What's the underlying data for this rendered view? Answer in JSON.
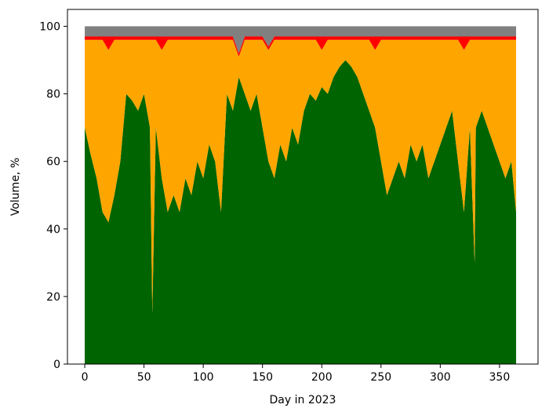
{
  "chart_data": {
    "type": "stacked_area",
    "xlabel": "Day in 2023",
    "ylabel": "Volume, %",
    "x": [
      0,
      5,
      10,
      15,
      20,
      25,
      30,
      35,
      40,
      45,
      50,
      55,
      57,
      60,
      65,
      70,
      75,
      80,
      85,
      90,
      95,
      100,
      105,
      110,
      115,
      120,
      125,
      130,
      135,
      140,
      145,
      150,
      155,
      160,
      165,
      170,
      175,
      180,
      185,
      190,
      195,
      200,
      205,
      210,
      215,
      220,
      225,
      230,
      235,
      240,
      245,
      250,
      255,
      260,
      265,
      270,
      275,
      280,
      285,
      290,
      295,
      300,
      305,
      310,
      315,
      320,
      325,
      329,
      330,
      335,
      340,
      345,
      350,
      355,
      360,
      364
    ],
    "series": [
      {
        "color": "#006400",
        "values": [
          70,
          62,
          55,
          45,
          42,
          50,
          60,
          80,
          78,
          75,
          80,
          70,
          15,
          70,
          55,
          45,
          50,
          45,
          55,
          50,
          60,
          55,
          65,
          60,
          45,
          80,
          75,
          85,
          80,
          75,
          80,
          70,
          60,
          55,
          65,
          60,
          70,
          65,
          75,
          80,
          78,
          82,
          80,
          85,
          88,
          90,
          88,
          85,
          80,
          75,
          70,
          60,
          50,
          55,
          60,
          55,
          65,
          60,
          65,
          55,
          60,
          65,
          70,
          75,
          60,
          45,
          70,
          30,
          70,
          75,
          70,
          65,
          60,
          55,
          60,
          45
        ]
      },
      {
        "color": "#ffa500",
        "values": [
          26,
          34,
          41,
          51,
          51,
          46,
          36,
          16,
          18,
          21,
          16,
          26,
          81,
          26,
          38,
          51,
          46,
          51,
          41,
          46,
          36,
          41,
          31,
          36,
          51,
          16,
          21,
          6,
          16,
          21,
          16,
          26,
          33,
          41,
          31,
          36,
          26,
          31,
          21,
          16,
          18,
          11,
          16,
          11,
          8,
          6,
          8,
          11,
          16,
          21,
          23,
          36,
          46,
          41,
          36,
          41,
          31,
          36,
          31,
          41,
          36,
          31,
          26,
          21,
          36,
          48,
          26,
          66,
          26,
          21,
          26,
          31,
          36,
          41,
          36,
          51
        ]
      },
      {
        "color": "#ff0000",
        "values": [
          1,
          1,
          1,
          1,
          4,
          1,
          1,
          1,
          1,
          1,
          1,
          1,
          1,
          1,
          4,
          1,
          1,
          1,
          1,
          1,
          1,
          1,
          1,
          1,
          1,
          1,
          1,
          1,
          1,
          1,
          1,
          1,
          1,
          1,
          1,
          1,
          1,
          1,
          1,
          1,
          1,
          4,
          1,
          1,
          1,
          1,
          1,
          1,
          1,
          1,
          4,
          1,
          1,
          1,
          1,
          1,
          1,
          1,
          1,
          1,
          1,
          1,
          1,
          1,
          1,
          4,
          1,
          1,
          1,
          1,
          1,
          1,
          1,
          1,
          1,
          1
        ]
      },
      {
        "color": "#808080",
        "values": [
          3,
          3,
          3,
          3,
          3,
          3,
          3,
          3,
          3,
          3,
          3,
          3,
          3,
          3,
          3,
          3,
          3,
          3,
          3,
          3,
          3,
          3,
          3,
          3,
          3,
          3,
          3,
          8,
          3,
          3,
          3,
          3,
          6,
          3,
          3,
          3,
          3,
          3,
          3,
          3,
          3,
          3,
          3,
          3,
          3,
          3,
          3,
          3,
          3,
          3,
          3,
          3,
          3,
          3,
          3,
          3,
          3,
          3,
          3,
          3,
          3,
          3,
          3,
          3,
          3,
          3,
          3,
          3,
          3,
          3,
          3,
          3,
          3,
          3,
          3,
          3
        ]
      }
    ],
    "xlim": [
      -14.6,
      382.5
    ],
    "xticks": [
      0,
      50,
      100,
      150,
      200,
      250,
      300,
      350
    ],
    "ylim": [
      0,
      105
    ],
    "yticks": [
      0,
      20,
      40,
      60,
      80,
      100
    ]
  }
}
